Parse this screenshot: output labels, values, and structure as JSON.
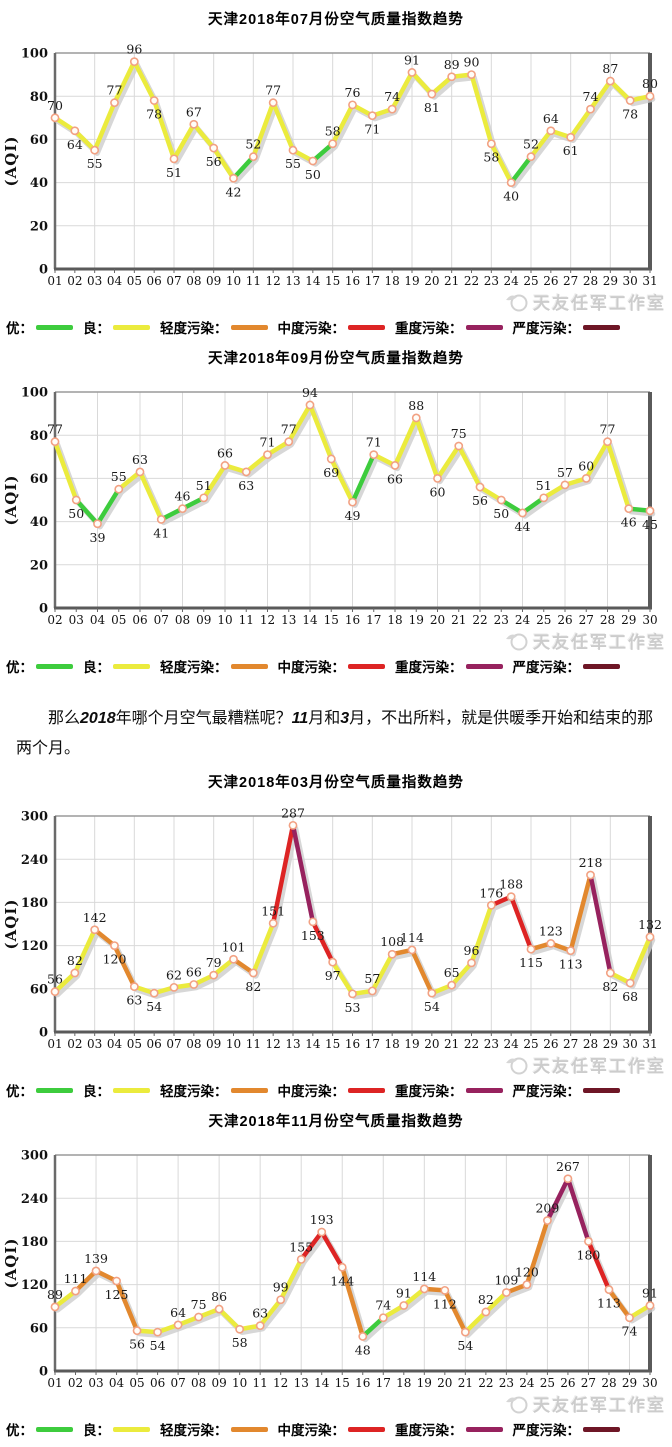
{
  "watermark": {
    "text": "天友任军工作室"
  },
  "axis": {
    "ylabel": "(AQI)"
  },
  "legend": {
    "items": [
      {
        "label": "优：",
        "color": "#3dcc3d"
      },
      {
        "label": "良：",
        "color": "#ebeb3d"
      },
      {
        "label": "轻度污染：",
        "color": "#e2882e"
      },
      {
        "label": "中度污染：",
        "color": "#dd2424"
      },
      {
        "label": "重度污染：",
        "color": "#97225e"
      },
      {
        "label": "严度污染：",
        "color": "#6e1626"
      }
    ]
  },
  "aqi_level_thresholds": [
    50,
    100,
    150,
    200,
    300
  ],
  "note": {
    "segments": [
      {
        "text": "那么",
        "bold": false
      },
      {
        "text": "2018",
        "bold": true
      },
      {
        "text": "年哪个月空气最糟糕呢？",
        "bold": false
      },
      {
        "text": "11",
        "bold": true
      },
      {
        "text": "月和",
        "bold": false
      },
      {
        "text": "3",
        "bold": true
      },
      {
        "text": "月，不出所料，就是供暖季开始和结束的那两个月。",
        "bold": false
      }
    ]
  },
  "chart_data": [
    {
      "type": "line",
      "title": "天津2018年07月份空气质量指数趋势",
      "ylabel": "(AQI)",
      "ylim": [
        0,
        100
      ],
      "ytick_step": 20,
      "grid": true,
      "categories": [
        "01",
        "02",
        "03",
        "04",
        "05",
        "06",
        "07",
        "08",
        "09",
        "10",
        "11",
        "12",
        "13",
        "14",
        "15",
        "16",
        "17",
        "18",
        "19",
        "20",
        "21",
        "22",
        "23",
        "24",
        "25",
        "26",
        "27",
        "28",
        "29",
        "30",
        "31"
      ],
      "values": [
        70,
        64,
        55,
        77,
        96,
        78,
        51,
        67,
        56,
        42,
        52,
        77,
        55,
        50,
        58,
        76,
        71,
        74,
        91,
        81,
        89,
        90,
        58,
        40,
        52,
        64,
        61,
        74,
        87,
        78,
        80
      ]
    },
    {
      "type": "line",
      "title": "天津2018年09月份空气质量指数趋势",
      "ylabel": "(AQI)",
      "ylim": [
        0,
        100
      ],
      "ytick_step": 20,
      "grid": true,
      "categories": [
        "02",
        "03",
        "04",
        "05",
        "06",
        "07",
        "08",
        "09",
        "10",
        "11",
        "12",
        "13",
        "14",
        "15",
        "16",
        "17",
        "18",
        "19",
        "20",
        "21",
        "22",
        "23",
        "24",
        "25",
        "26",
        "27",
        "28",
        "29",
        "30"
      ],
      "values": [
        77,
        50,
        39,
        55,
        63,
        41,
        46,
        51,
        66,
        63,
        71,
        77,
        94,
        69,
        49,
        71,
        66,
        88,
        60,
        75,
        56,
        50,
        44,
        51,
        57,
        60,
        77,
        46,
        45
      ]
    },
    {
      "type": "line",
      "title": "天津2018年03月份空气质量指数趋势",
      "ylabel": "(AQI)",
      "ylim": [
        0,
        300
      ],
      "ytick_step": 60,
      "grid": true,
      "categories": [
        "01",
        "02",
        "03",
        "04",
        "05",
        "06",
        "07",
        "08",
        "09",
        "10",
        "11",
        "12",
        "13",
        "14",
        "15",
        "16",
        "17",
        "18",
        "19",
        "20",
        "21",
        "22",
        "23",
        "24",
        "25",
        "26",
        "27",
        "28",
        "29",
        "30",
        "31"
      ],
      "values": [
        56,
        82,
        142,
        120,
        63,
        54,
        62,
        66,
        79,
        101,
        82,
        151,
        287,
        153,
        97,
        53,
        57,
        108,
        114,
        54,
        65,
        96,
        176,
        188,
        115,
        123,
        113,
        218,
        82,
        68,
        132
      ]
    },
    {
      "type": "line",
      "title": "天津2018年11月份空气质量指数趋势",
      "ylabel": "(AQI)",
      "ylim": [
        0,
        300
      ],
      "ytick_step": 60,
      "grid": true,
      "categories": [
        "01",
        "02",
        "03",
        "04",
        "05",
        "06",
        "07",
        "08",
        "09",
        "10",
        "11",
        "12",
        "13",
        "14",
        "15",
        "16",
        "17",
        "18",
        "19",
        "20",
        "21",
        "22",
        "23",
        "24",
        "25",
        "26",
        "27",
        "28",
        "29",
        "30"
      ],
      "values": [
        89,
        111,
        139,
        125,
        56,
        54,
        64,
        75,
        86,
        58,
        63,
        99,
        155,
        193,
        144,
        48,
        74,
        91,
        114,
        112,
        54,
        82,
        109,
        120,
        209,
        267,
        180,
        113,
        74,
        91
      ]
    }
  ]
}
